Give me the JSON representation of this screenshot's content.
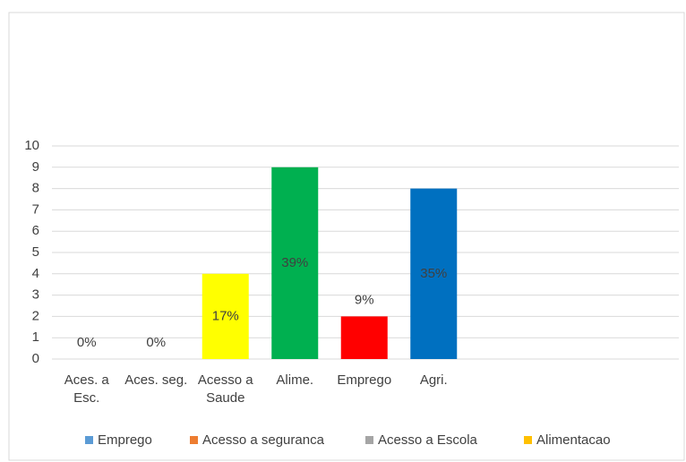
{
  "chart_data": {
    "type": "bar",
    "categories": [
      "Aces. a Esc.",
      "Aces. seg.",
      "Acesso a Saude",
      "Alime.",
      "Emprego",
      "Agri."
    ],
    "values": [
      0,
      0,
      4,
      9,
      2,
      8
    ],
    "colors": [
      "#ffff00",
      "#ffff00",
      "#ffff00",
      "#00b050",
      "#ff0000",
      "#0070c0"
    ],
    "annotations": [
      "0%",
      "0%",
      "17%",
      "39%",
      "9%",
      "35%"
    ],
    "ylim": [
      0,
      10
    ],
    "yticks": [
      0,
      1,
      2,
      3,
      4,
      5,
      6,
      7,
      8,
      9,
      10
    ],
    "grid": true,
    "legend": [
      {
        "name": "Emprego",
        "color": "#5b9bd5"
      },
      {
        "name": "Acesso a seguranca",
        "color": "#ed7d31"
      },
      {
        "name": "Acesso a Escola",
        "color": "#a5a5a5"
      },
      {
        "name": "Alimentacao",
        "color": "#ffc000"
      }
    ],
    "legend_position": "bottom"
  }
}
